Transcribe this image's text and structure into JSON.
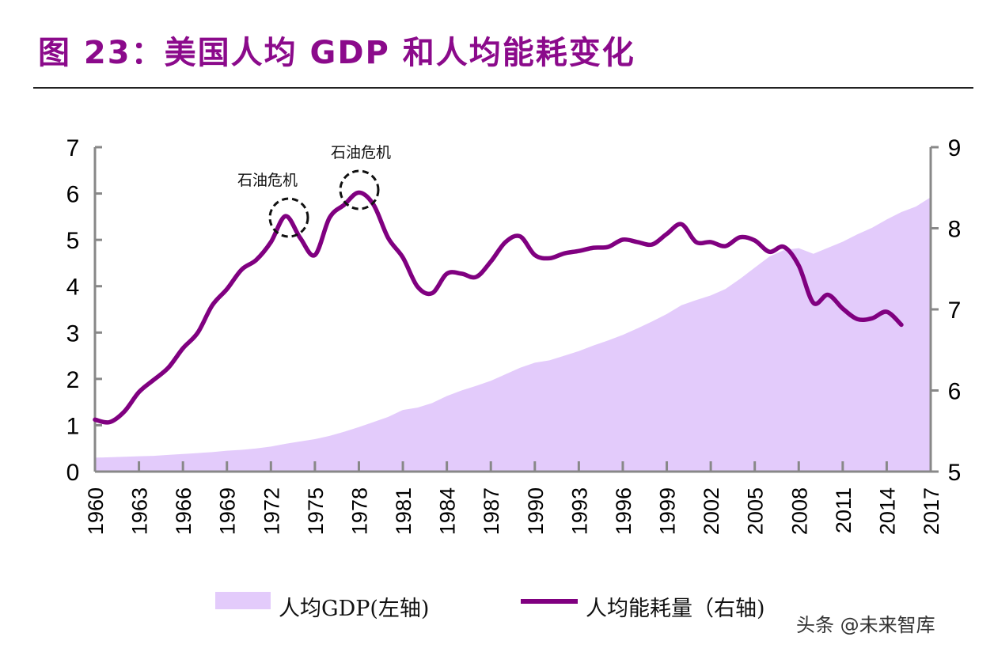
{
  "title": "图 23：美国人均 GDP 和人均能耗变化",
  "watermark": "头条 @未来智库",
  "chart_data": {
    "type": "area+line",
    "title": "图 23：美国人均 GDP 和人均能耗变化",
    "x_ticks": [
      "1960",
      "1963",
      "1966",
      "1969",
      "1972",
      "1975",
      "1978",
      "1981",
      "1984",
      "1987",
      "1990",
      "1993",
      "1996",
      "1999",
      "2002",
      "2005",
      "2008",
      "2011",
      "2014",
      "2017"
    ],
    "left_axis": {
      "ylim": [
        0,
        7
      ],
      "ticks": [
        "0",
        "1",
        "2",
        "3",
        "4",
        "5",
        "6",
        "7"
      ]
    },
    "right_axis": {
      "ylim": [
        5,
        9
      ],
      "ticks": [
        "5",
        "6",
        "7",
        "8",
        "9"
      ]
    },
    "grid": false,
    "legend_position": "bottom",
    "colors": {
      "gdp_area": "#E3CBFB",
      "energy_line": "#800080",
      "title": "#8B0A8B"
    },
    "series": [
      {
        "name": "人均GDP(左轴)",
        "type": "area",
        "axis": "left",
        "x": [
          1960,
          1961,
          1962,
          1963,
          1964,
          1965,
          1966,
          1967,
          1968,
          1969,
          1970,
          1971,
          1972,
          1973,
          1974,
          1975,
          1976,
          1977,
          1978,
          1979,
          1980,
          1981,
          1982,
          1983,
          1984,
          1985,
          1986,
          1987,
          1988,
          1989,
          1990,
          1991,
          1992,
          1993,
          1994,
          1995,
          1996,
          1997,
          1998,
          1999,
          2000,
          2001,
          2002,
          2003,
          2004,
          2005,
          2006,
          2007,
          2008,
          2009,
          2010,
          2011,
          2012,
          2013,
          2014,
          2015,
          2016,
          2017
        ],
        "values": [
          0.3,
          0.31,
          0.32,
          0.33,
          0.34,
          0.36,
          0.38,
          0.4,
          0.42,
          0.45,
          0.47,
          0.5,
          0.54,
          0.6,
          0.65,
          0.7,
          0.77,
          0.86,
          0.96,
          1.07,
          1.18,
          1.33,
          1.38,
          1.48,
          1.63,
          1.75,
          1.85,
          1.96,
          2.1,
          2.24,
          2.35,
          2.4,
          2.5,
          2.6,
          2.72,
          2.83,
          2.95,
          3.09,
          3.24,
          3.4,
          3.59,
          3.7,
          3.8,
          3.94,
          4.16,
          4.4,
          4.64,
          4.78,
          4.82,
          4.7,
          4.83,
          4.96,
          5.12,
          5.26,
          5.44,
          5.6,
          5.72,
          5.92
        ]
      },
      {
        "name": "人均能耗量（右轴)",
        "type": "line",
        "axis": "right",
        "x": [
          1960,
          1961,
          1962,
          1963,
          1964,
          1965,
          1966,
          1967,
          1968,
          1969,
          1970,
          1971,
          1972,
          1973,
          1974,
          1975,
          1976,
          1977,
          1978,
          1979,
          1980,
          1981,
          1982,
          1983,
          1984,
          1985,
          1986,
          1987,
          1988,
          1989,
          1990,
          1991,
          1992,
          1993,
          1994,
          1995,
          1996,
          1997,
          1998,
          1999,
          2000,
          2001,
          2002,
          2003,
          2004,
          2005,
          2006,
          2007,
          2008,
          2009,
          2010,
          2011,
          2012,
          2013,
          2014,
          2015
        ],
        "values": [
          5.64,
          5.61,
          5.74,
          5.98,
          6.13,
          6.28,
          6.52,
          6.71,
          7.05,
          7.25,
          7.49,
          7.61,
          7.83,
          8.15,
          7.88,
          7.67,
          8.13,
          8.29,
          8.44,
          8.29,
          7.88,
          7.64,
          7.28,
          7.2,
          7.44,
          7.44,
          7.4,
          7.59,
          7.83,
          7.9,
          7.67,
          7.63,
          7.69,
          7.72,
          7.76,
          7.77,
          7.86,
          7.83,
          7.8,
          7.93,
          8.05,
          7.83,
          7.83,
          7.78,
          7.89,
          7.85,
          7.71,
          7.77,
          7.54,
          7.08,
          7.18,
          7.01,
          6.88,
          6.89,
          6.97,
          6.81
        ]
      }
    ],
    "annotations": [
      {
        "text": "石油危机",
        "x": 1974
      },
      {
        "text": "石油危机",
        "x": 1979
      }
    ]
  }
}
